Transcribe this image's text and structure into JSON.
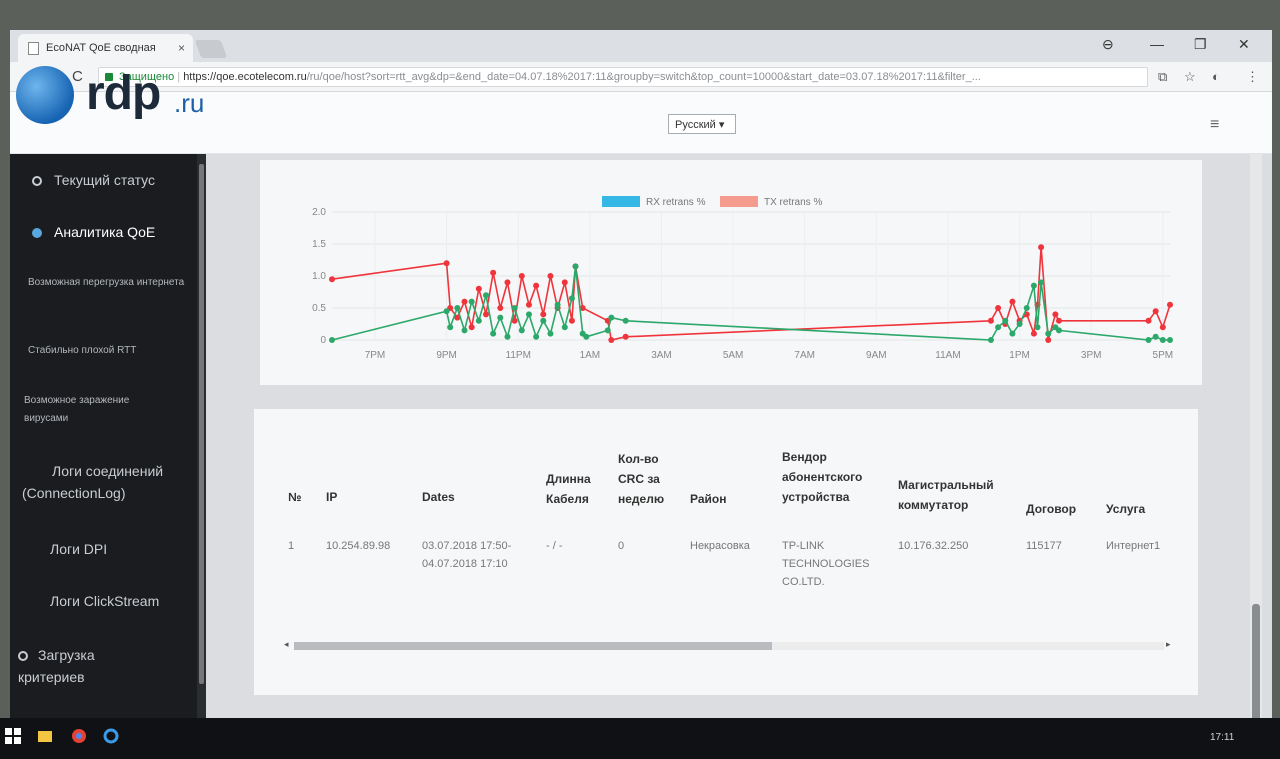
{
  "browser": {
    "tab_title": "EcoNAT QoE сводная",
    "tab_close": "×",
    "secure_label": "Защищено",
    "url_host": "https://qoe.ecotelecom.ru",
    "url_path": "/ru/qoe/host?sort=rtt_avg&dp=&end_date=04.07.18%2017:11&groupby=switch&top_count=10000&start_date=03.07.18%2017:11&filter_...",
    "back": "←",
    "forward": "→",
    "reload": "C",
    "minimize": "—",
    "maximize": "❐",
    "close": "✕",
    "account": "⊖",
    "translate_icon": "⧉",
    "star": "☆",
    "ext_icon": "◐",
    "menu": "⋮"
  },
  "header": {
    "logo_main": "rdp",
    "logo_tld": ".ru",
    "language": "Русский ▾",
    "menu_icon": "≡"
  },
  "sidebar": {
    "items": [
      {
        "label": "Текущий статус"
      },
      {
        "label": "Аналитика QoE"
      },
      {
        "label": "Возможная перегрузка интернета"
      },
      {
        "label": "Стабильно плохой RTT"
      },
      {
        "label": "Возможное заражение вирусами"
      },
      {
        "label": "Логи соединений (ConnectionLog)"
      },
      {
        "label": "Логи DPI"
      },
      {
        "label": "Логи ClickStream"
      },
      {
        "label": "Загрузка критериев"
      }
    ]
  },
  "chart_data": {
    "type": "line",
    "series": [
      {
        "name": "RX retrans %",
        "color": "#2ca86a",
        "legend_color": "#35b8e6"
      },
      {
        "name": "TX retrans %",
        "color": "#f0343c",
        "legend_color": "#f59c8e"
      }
    ],
    "x_ticks": [
      "7PM",
      "9PM",
      "11PM",
      "1AM",
      "3AM",
      "5AM",
      "7AM",
      "9AM",
      "11AM",
      "1PM",
      "3PM",
      "5PM"
    ],
    "y_ticks": [
      "0",
      "0.5",
      "1.0",
      "1.5",
      "2.0"
    ],
    "ylim": [
      0,
      2
    ],
    "xlim_hours": [
      17.8,
      41.2
    ],
    "grid": true,
    "legend_position": "top-center",
    "rx": [
      [
        17.8,
        0
      ],
      [
        21,
        0.45
      ],
      [
        21.1,
        0.2
      ],
      [
        21.3,
        0.5
      ],
      [
        21.5,
        0.15
      ],
      [
        21.7,
        0.6
      ],
      [
        21.9,
        0.3
      ],
      [
        22.1,
        0.7
      ],
      [
        22.3,
        0.1
      ],
      [
        22.5,
        0.35
      ],
      [
        22.7,
        0.05
      ],
      [
        22.9,
        0.5
      ],
      [
        23.1,
        0.15
      ],
      [
        23.3,
        0.4
      ],
      [
        23.5,
        0.05
      ],
      [
        23.7,
        0.3
      ],
      [
        23.9,
        0.1
      ],
      [
        24.1,
        0.55
      ],
      [
        24.3,
        0.2
      ],
      [
        24.5,
        0.65
      ],
      [
        24.6,
        1.15
      ],
      [
        24.8,
        0.1
      ],
      [
        24.9,
        0.05
      ],
      [
        25.5,
        0.15
      ],
      [
        25.6,
        0.35
      ],
      [
        26,
        0.3
      ],
      [
        36.2,
        0
      ],
      [
        36.4,
        0.2
      ],
      [
        36.6,
        0.3
      ],
      [
        36.8,
        0.1
      ],
      [
        37,
        0.25
      ],
      [
        37.2,
        0.5
      ],
      [
        37.4,
        0.85
      ],
      [
        37.5,
        0.2
      ],
      [
        37.6,
        0.9
      ],
      [
        37.8,
        0.1
      ],
      [
        38,
        0.2
      ],
      [
        38.1,
        0.15
      ],
      [
        40.6,
        0
      ],
      [
        40.8,
        0.05
      ],
      [
        41,
        0
      ],
      [
        41.2,
        0
      ]
    ],
    "tx": [
      [
        17.8,
        0.95
      ],
      [
        21,
        1.2
      ],
      [
        21.1,
        0.5
      ],
      [
        21.3,
        0.35
      ],
      [
        21.5,
        0.6
      ],
      [
        21.7,
        0.2
      ],
      [
        21.9,
        0.8
      ],
      [
        22.1,
        0.4
      ],
      [
        22.3,
        1.05
      ],
      [
        22.5,
        0.5
      ],
      [
        22.7,
        0.9
      ],
      [
        22.9,
        0.3
      ],
      [
        23.1,
        1.0
      ],
      [
        23.3,
        0.55
      ],
      [
        23.5,
        0.85
      ],
      [
        23.7,
        0.4
      ],
      [
        23.9,
        1.0
      ],
      [
        24.1,
        0.5
      ],
      [
        24.3,
        0.9
      ],
      [
        24.5,
        0.3
      ],
      [
        24.6,
        1.15
      ],
      [
        24.8,
        0.5
      ],
      [
        25.5,
        0.3
      ],
      [
        25.6,
        0
      ],
      [
        26,
        0.05
      ],
      [
        36.2,
        0.3
      ],
      [
        36.4,
        0.5
      ],
      [
        36.6,
        0.25
      ],
      [
        36.8,
        0.6
      ],
      [
        37,
        0.3
      ],
      [
        37.2,
        0.4
      ],
      [
        37.4,
        0.1
      ],
      [
        37.5,
        0.55
      ],
      [
        37.6,
        1.45
      ],
      [
        37.8,
        0
      ],
      [
        38,
        0.4
      ],
      [
        38.1,
        0.3
      ],
      [
        40.6,
        0.3
      ],
      [
        40.8,
        0.45
      ],
      [
        41,
        0.2
      ],
      [
        41.2,
        0.55
      ]
    ]
  },
  "table": {
    "headers": [
      "№",
      "IP",
      "Dates",
      "Длинна Кабеля",
      "Кол-во CRC за неделю",
      "Район",
      "Вендор абонентского устройства",
      "Магистральный коммутатор",
      "Договор",
      "Услуга"
    ],
    "rows": [
      [
        "1",
        "10.254.89.98",
        "03.07.2018 17:50-04.07.2018 17:10",
        "- / -",
        "0",
        "Некрасовка",
        "TP-LINK TECHNOLOGIES CO.LTD.",
        "10.176.32.250",
        "115177",
        "Интернет1"
      ]
    ],
    "scroll_left": "◂",
    "scroll_right": "▸"
  },
  "taskbar": {
    "tray_text": "17:11"
  }
}
